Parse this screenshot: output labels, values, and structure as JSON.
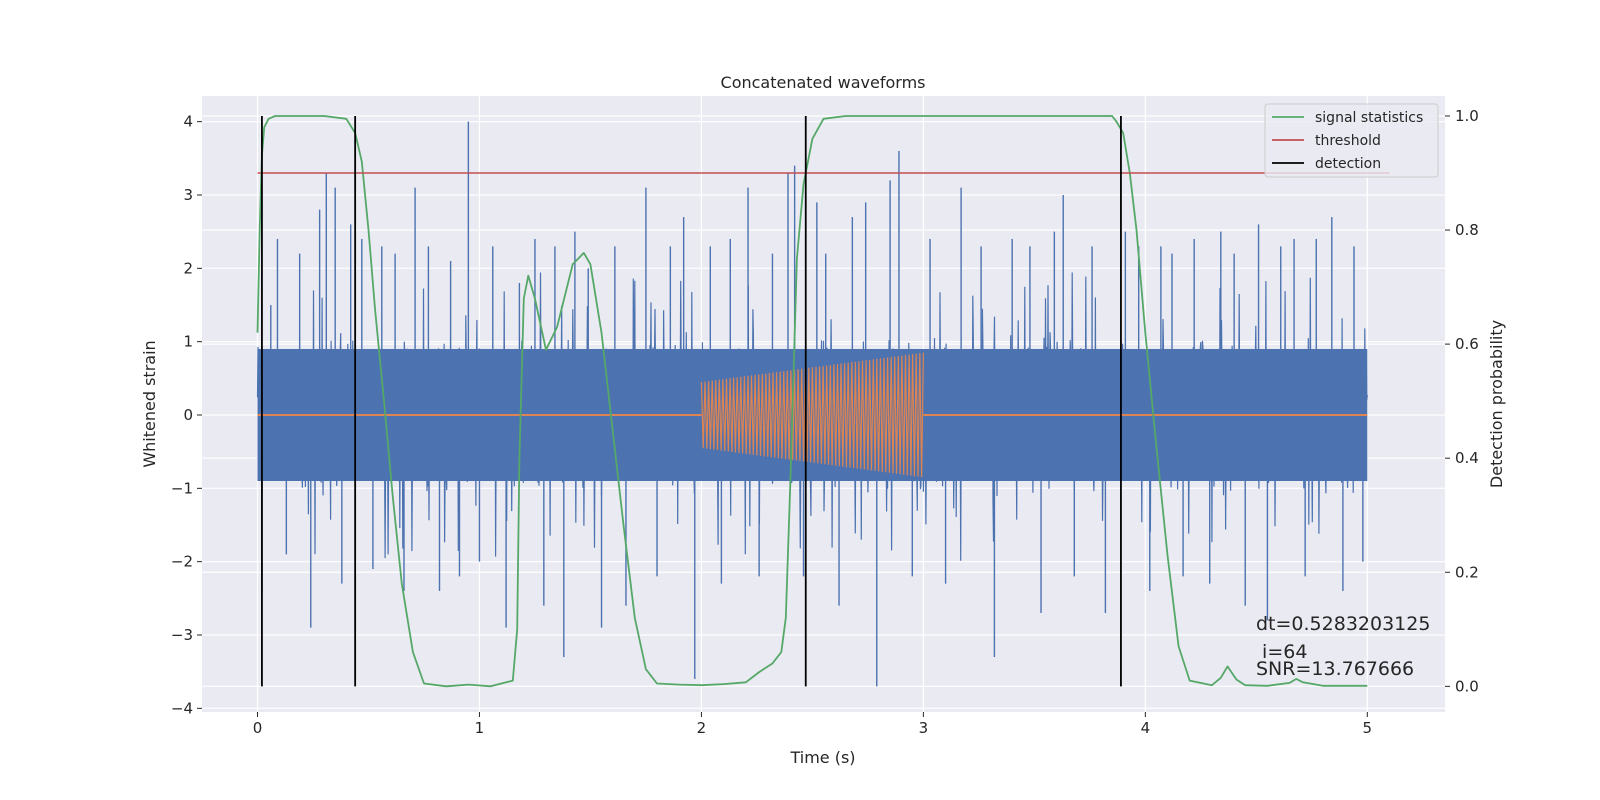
{
  "chart_data": {
    "type": "line",
    "title": "Concatenated waveforms",
    "xlabel": "Time (s)",
    "ylabel": "Whitened strain",
    "y2label": "Detection probability",
    "xlim": [
      -0.25,
      5.35
    ],
    "ylim": [
      -4.05,
      4.35
    ],
    "y2lim": [
      -0.045,
      1.035
    ],
    "xticks": [
      0,
      1,
      2,
      3,
      4,
      5
    ],
    "yticks": [
      -4,
      -3,
      -2,
      -1,
      0,
      1,
      2,
      3,
      4
    ],
    "y2ticks": [
      0.0,
      0.2,
      0.4,
      0.6,
      0.8,
      1.0
    ],
    "xtick_labels": [
      "0",
      "1",
      "2",
      "3",
      "4",
      "5"
    ],
    "ytick_labels": [
      "−4",
      "−3",
      "−2",
      "−1",
      "0",
      "1",
      "2",
      "3",
      "4"
    ],
    "y2tick_labels": [
      "0.0",
      "0.2",
      "0.4",
      "0.6",
      "0.8",
      "1.0"
    ],
    "grid": true,
    "legend_position": "top-right",
    "colors": {
      "background": "#eaeaf2",
      "grid": "#ffffff",
      "strain": "#4c72b0",
      "injected": "#dd8452",
      "signal_statistics": "#55a868",
      "threshold": "#c44e52",
      "detection": "#000000"
    },
    "series": [
      {
        "name": "",
        "role": "whitened-strain",
        "axis": "left",
        "x_range": [
          0,
          5
        ],
        "description_values": {
          "band_amplitude": 0.9,
          "max_peak": 4.0,
          "min_peak": -3.7
        },
        "peaks": [
          [
            0.02,
            -2.4
          ],
          [
            0.06,
            1.5
          ],
          [
            0.09,
            2.4
          ],
          [
            0.13,
            -1.9
          ],
          [
            0.19,
            2.2
          ],
          [
            0.24,
            -2.9
          ],
          [
            0.28,
            2.8
          ],
          [
            0.31,
            3.3
          ],
          [
            0.35,
            3.1
          ],
          [
            0.38,
            -2.3
          ],
          [
            0.42,
            2.6
          ],
          [
            0.47,
            2.4
          ],
          [
            0.52,
            -2.1
          ],
          [
            0.56,
            2.3
          ],
          [
            0.62,
            2.2
          ],
          [
            0.66,
            -2.4
          ],
          [
            0.71,
            3.1
          ],
          [
            0.77,
            2.3
          ],
          [
            0.82,
            -2.4
          ],
          [
            0.87,
            2.1
          ],
          [
            0.91,
            -2.2
          ],
          [
            0.95,
            4.0
          ],
          [
            1.0,
            -2.0
          ],
          [
            1.06,
            2.3
          ],
          [
            1.12,
            -2.9
          ],
          [
            1.18,
            1.8
          ],
          [
            1.25,
            2.4
          ],
          [
            1.29,
            -2.6
          ],
          [
            1.34,
            2.3
          ],
          [
            1.38,
            -3.3
          ],
          [
            1.43,
            2.5
          ],
          [
            1.49,
            2.0
          ],
          [
            1.55,
            -2.9
          ],
          [
            1.61,
            2.3
          ],
          [
            1.66,
            -2.6
          ],
          [
            1.75,
            3.1
          ],
          [
            1.8,
            -2.2
          ],
          [
            1.86,
            2.3
          ],
          [
            1.92,
            2.7
          ],
          [
            1.97,
            -3.6
          ],
          [
            2.04,
            2.3
          ],
          [
            2.09,
            -2.3
          ],
          [
            2.13,
            2.4
          ],
          [
            2.21,
            3.1
          ],
          [
            2.26,
            -2.2
          ],
          [
            2.32,
            2.2
          ],
          [
            2.39,
            3.3
          ],
          [
            2.42,
            3.4
          ],
          [
            2.46,
            -2.2
          ],
          [
            2.52,
            2.9
          ],
          [
            2.56,
            2.2
          ],
          [
            2.62,
            -2.6
          ],
          [
            2.68,
            2.7
          ],
          [
            2.74,
            2.9
          ],
          [
            2.79,
            -3.7
          ],
          [
            2.85,
            3.2
          ],
          [
            2.89,
            3.6
          ],
          [
            2.95,
            -2.2
          ],
          [
            3.03,
            2.4
          ],
          [
            3.1,
            -2.3
          ],
          [
            3.17,
            3.1
          ],
          [
            3.26,
            2.3
          ],
          [
            3.32,
            -3.3
          ],
          [
            3.4,
            2.4
          ],
          [
            3.48,
            2.3
          ],
          [
            3.53,
            -2.7
          ],
          [
            3.59,
            2.5
          ],
          [
            3.63,
            3.0
          ],
          [
            3.68,
            -2.2
          ],
          [
            3.76,
            2.3
          ],
          [
            3.82,
            -2.7
          ],
          [
            3.91,
            2.5
          ],
          [
            3.97,
            2.3
          ],
          [
            4.02,
            -2.4
          ],
          [
            4.07,
            2.3
          ],
          [
            4.12,
            2.2
          ],
          [
            4.17,
            -2.2
          ],
          [
            4.22,
            2.4
          ],
          [
            4.29,
            -2.3
          ],
          [
            4.34,
            2.5
          ],
          [
            4.4,
            2.2
          ],
          [
            4.45,
            -2.6
          ],
          [
            4.51,
            2.6
          ],
          [
            4.55,
            -2.8
          ],
          [
            4.61,
            2.3
          ],
          [
            4.67,
            2.4
          ],
          [
            4.72,
            -2.2
          ],
          [
            4.77,
            2.4
          ],
          [
            4.84,
            2.7
          ],
          [
            4.89,
            -2.4
          ],
          [
            4.94,
            2.3
          ],
          [
            4.98,
            -2.0
          ]
        ]
      },
      {
        "name": "",
        "role": "injected-waveform",
        "axis": "left",
        "x_range": [
          0,
          5
        ],
        "chirp_start": 2.0,
        "chirp_end": 3.0,
        "amplitude_start": 0.45,
        "amplitude_end": 0.85
      },
      {
        "name": "signal statistics",
        "axis": "right",
        "x": [
          0.0,
          0.01,
          0.02,
          0.03,
          0.05,
          0.08,
          0.15,
          0.3,
          0.4,
          0.44,
          0.47,
          0.5,
          0.53,
          0.57,
          0.61,
          0.65,
          0.7,
          0.75,
          0.85,
          0.95,
          1.05,
          1.15,
          1.17,
          1.18,
          1.2,
          1.22,
          1.25,
          1.3,
          1.35,
          1.42,
          1.47,
          1.5,
          1.55,
          1.6,
          1.65,
          1.7,
          1.75,
          1.8,
          1.9,
          2.0,
          2.1,
          2.2,
          2.26,
          2.32,
          2.36,
          2.38,
          2.4,
          2.43,
          2.46,
          2.5,
          2.55,
          2.65,
          3.0,
          3.5,
          3.85,
          3.87,
          3.9,
          3.93,
          3.96,
          4.0,
          4.05,
          4.1,
          4.15,
          4.2,
          4.3,
          4.34,
          4.37,
          4.41,
          4.45,
          4.55,
          4.65,
          4.68,
          4.71,
          4.8,
          4.9,
          5.0
        ],
        "values": [
          0.62,
          0.8,
          0.93,
          0.98,
          0.995,
          1.0,
          1.0,
          1.0,
          0.995,
          0.97,
          0.92,
          0.8,
          0.66,
          0.5,
          0.33,
          0.18,
          0.06,
          0.005,
          0.0,
          0.003,
          0.0,
          0.01,
          0.1,
          0.4,
          0.68,
          0.72,
          0.68,
          0.59,
          0.63,
          0.74,
          0.76,
          0.74,
          0.62,
          0.45,
          0.28,
          0.12,
          0.03,
          0.005,
          0.003,
          0.002,
          0.004,
          0.007,
          0.025,
          0.04,
          0.06,
          0.12,
          0.35,
          0.75,
          0.88,
          0.96,
          0.995,
          1.0,
          1.0,
          1.0,
          1.0,
          0.99,
          0.97,
          0.9,
          0.8,
          0.62,
          0.42,
          0.23,
          0.07,
          0.01,
          0.002,
          0.015,
          0.035,
          0.012,
          0.002,
          0.001,
          0.006,
          0.013,
          0.007,
          0.001,
          0.001,
          0.001
        ]
      },
      {
        "name": "threshold",
        "axis": "right",
        "x": [
          0,
          5.1
        ],
        "values": [
          0.9,
          0.9
        ]
      },
      {
        "name": "detection",
        "axis": "right",
        "vlines_x": [
          0.02,
          0.44,
          2.47,
          3.89
        ],
        "vline_range": [
          0,
          1
        ]
      }
    ],
    "legend": [
      "signal statistics",
      "threshold",
      "detection"
    ],
    "annotations": {
      "dt": "dt=0.5283203125",
      "i": " i=64",
      "snr": "SNR=13.767666"
    },
    "annotation_position": [
      4.5,
      -3.0
    ]
  }
}
